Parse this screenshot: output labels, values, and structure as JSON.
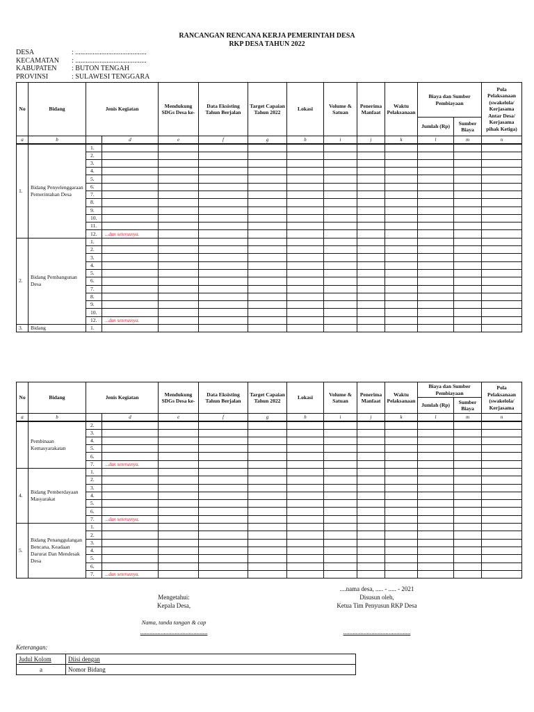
{
  "title": "RANCANGAN RENCANA KERJA PEMERINTAH DESA",
  "subtitle": "RKP DESA TAHUN 2022",
  "meta": [
    {
      "label": "DESA",
      "value": ": ........................................."
    },
    {
      "label": "KECAMATAN",
      "value": ": ........................................."
    },
    {
      "label": "KABUPATEN",
      "value": ": BUTON TENGAH"
    },
    {
      "label": "PROVINSI",
      "value": ": SULAWESI TENGGARA"
    }
  ],
  "header": {
    "no": "No",
    "bidang": "Bidang",
    "jenis": "Jenis Kegiatan",
    "e": "Mendukung SDGs Desa ke-",
    "f": "Data Eksisting Tahun Berjalan",
    "g": "Target Capaian Tahun 2022",
    "h": "Lokasi",
    "i": "Volume & Satuan",
    "j": "Penerima Manfaat",
    "k": "Waktu Pelaksanaan",
    "biaya": "Biaya dan Sumber Pembiayaan",
    "l": "Jumlah (Rp)",
    "m": "Sumber Biaya",
    "n1": "Pola Pelaksanaan (swakelola/ Kerjasama Antar Desa/ Kerjasama pihak Ketiga)",
    "n2": "Pola Pelaksanaan (swakelola/ Kerjasama"
  },
  "letters": [
    "a",
    "b",
    "",
    "d",
    "e",
    "f",
    "g",
    "h",
    "i",
    "j",
    "k",
    "l",
    "m",
    "n"
  ],
  "note": "...dan seterusnya.",
  "tables": [
    {
      "groups": [
        {
          "no": "1.",
          "bidang": "Bidang Penyelenggaraan Pemerintahan Desa",
          "rows": [
            "1.",
            "2.",
            "3.",
            "4.",
            "5.",
            "6.",
            "7.",
            "8.",
            "9.",
            "10.",
            "11.",
            "12."
          ]
        },
        {
          "no": "2.",
          "bidang": "Bidang Pembangunan Desa",
          "rows": [
            "1.",
            "2.",
            "3.",
            "4.",
            "5.",
            "6.",
            "7.",
            "8.",
            "9.",
            "10.",
            "12."
          ]
        },
        {
          "no": "3.",
          "bidang": "Bidang",
          "rows": [
            "1."
          ],
          "no_note": true
        }
      ]
    },
    {
      "groups": [
        {
          "no": "",
          "bidang": "Pembinaan Kemasyarakatan",
          "rows": [
            "2.",
            "3.",
            "4.",
            "5.",
            "6.",
            "7."
          ]
        },
        {
          "no": "4.",
          "bidang": "Bidang Pemberdayaan Masyarakat",
          "rows": [
            "1.",
            "2.",
            "3.",
            "4.",
            "5.",
            "6.",
            "7."
          ]
        },
        {
          "no": "5.",
          "bidang": "Bidang Penanggulangan Bencana, Keadaan Darurat Dan Mendesak Desa",
          "rows": [
            "1.",
            "2.",
            "3.",
            "4.",
            "5.",
            "6.",
            "7."
          ]
        }
      ]
    }
  ],
  "signature": {
    "left": {
      "line1": "Mengetahui:",
      "line2": "Kepala Desa,",
      "hint": "Nama, tanda tangan & cap",
      "dots": "..........................................."
    },
    "right": {
      "date": "....nama desa, ..... - ..... - 2021",
      "line1": "Disusun oleh,",
      "line2": "Ketua Tim Penyusun RKP Desa",
      "dots": "..........................................."
    }
  },
  "keterangan": {
    "label": "Keterangan:",
    "headers": [
      "Judul Kolom",
      "Diisi dengan"
    ],
    "rows": [
      [
        "a",
        "Nomor Bidang"
      ]
    ]
  }
}
